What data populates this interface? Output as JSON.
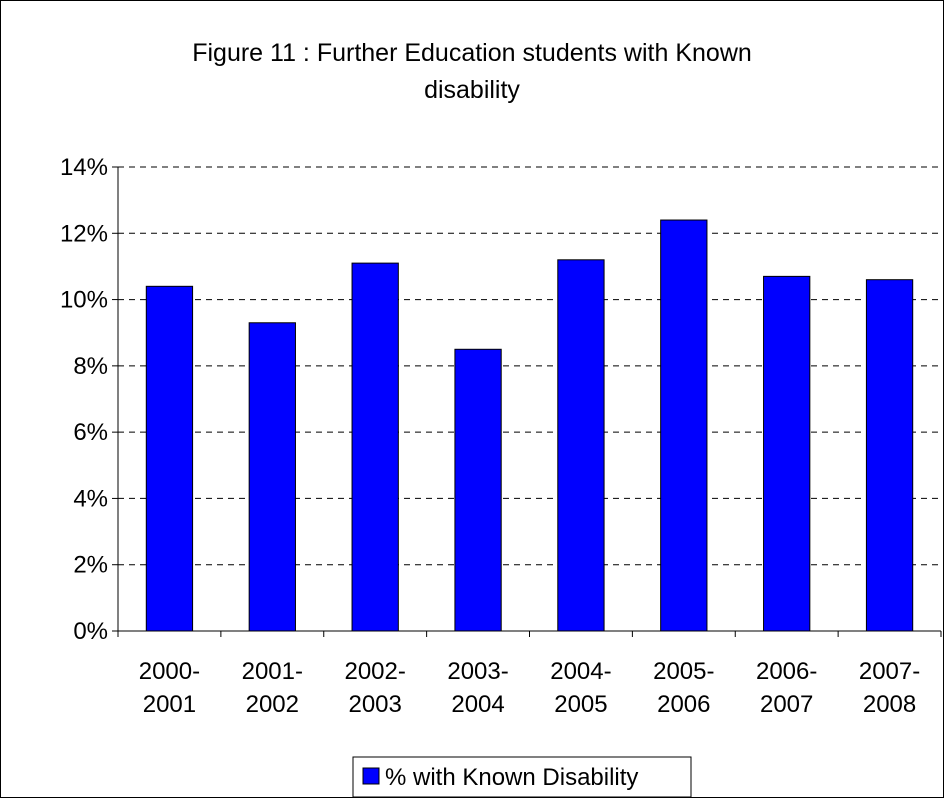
{
  "chart_data": {
    "type": "bar",
    "title_lines": [
      "Figure 11  : Further Education students with Known",
      "disability"
    ],
    "categories": [
      [
        "2000-",
        "2001"
      ],
      [
        "2001-",
        "2002"
      ],
      [
        "2002-",
        "2003"
      ],
      [
        "2003-",
        "2004"
      ],
      [
        "2004-",
        "2005"
      ],
      [
        "2005-",
        "2006"
      ],
      [
        "2006-",
        "2007"
      ],
      [
        "2007-",
        "2008"
      ]
    ],
    "series": [
      {
        "name": "% with Known Disability",
        "color": "#0000FF",
        "values": [
          0.104,
          0.093,
          0.111,
          0.085,
          0.112,
          0.124,
          0.107,
          0.106
        ]
      }
    ],
    "ylim": [
      0,
      0.14
    ],
    "yticks": [
      0,
      0.02,
      0.04,
      0.06,
      0.08,
      0.1,
      0.12,
      0.14
    ],
    "ytick_labels": [
      "0%",
      "2%",
      "4%",
      "6%",
      "8%",
      "10%",
      "12%",
      "14%"
    ],
    "grid": "horizontal dashed",
    "legend_position": "bottom"
  }
}
